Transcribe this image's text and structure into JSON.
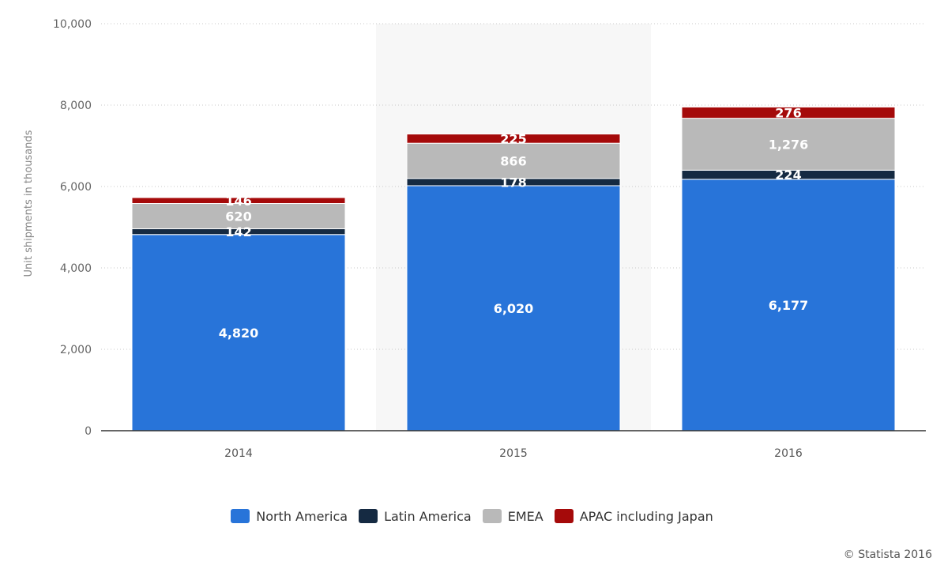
{
  "chart_data": {
    "type": "bar",
    "stacked": true,
    "categories": [
      "2014",
      "2015",
      "2016"
    ],
    "ylabel": "Unit shipments in thousands",
    "ylim": [
      0,
      10000
    ],
    "yticks": [
      0,
      2000,
      4000,
      6000,
      8000,
      10000
    ],
    "ytick_labels": [
      "0",
      "2,000",
      "4,000",
      "6,000",
      "8,000",
      "10,000"
    ],
    "grid": true,
    "highlighted_category": "2015",
    "legend_position": "bottom",
    "series": [
      {
        "name": "North America",
        "color": "#2874D9",
        "values": [
          4820,
          6020,
          6177
        ],
        "labels": [
          "4,820",
          "6,020",
          "6,177"
        ]
      },
      {
        "name": "Latin America",
        "color": "#152A42",
        "values": [
          142,
          178,
          224
        ],
        "labels": [
          "142",
          "178",
          "224"
        ]
      },
      {
        "name": "EMEA",
        "color": "#B9B9B9",
        "values": [
          620,
          866,
          1276
        ],
        "labels": [
          "620",
          "866",
          "1,276"
        ]
      },
      {
        "name": "APAC including Japan",
        "color": "#A50A0A",
        "values": [
          146,
          225,
          276
        ],
        "labels": [
          "146",
          "225",
          "276"
        ]
      }
    ]
  },
  "credit": "© Statista 2016"
}
